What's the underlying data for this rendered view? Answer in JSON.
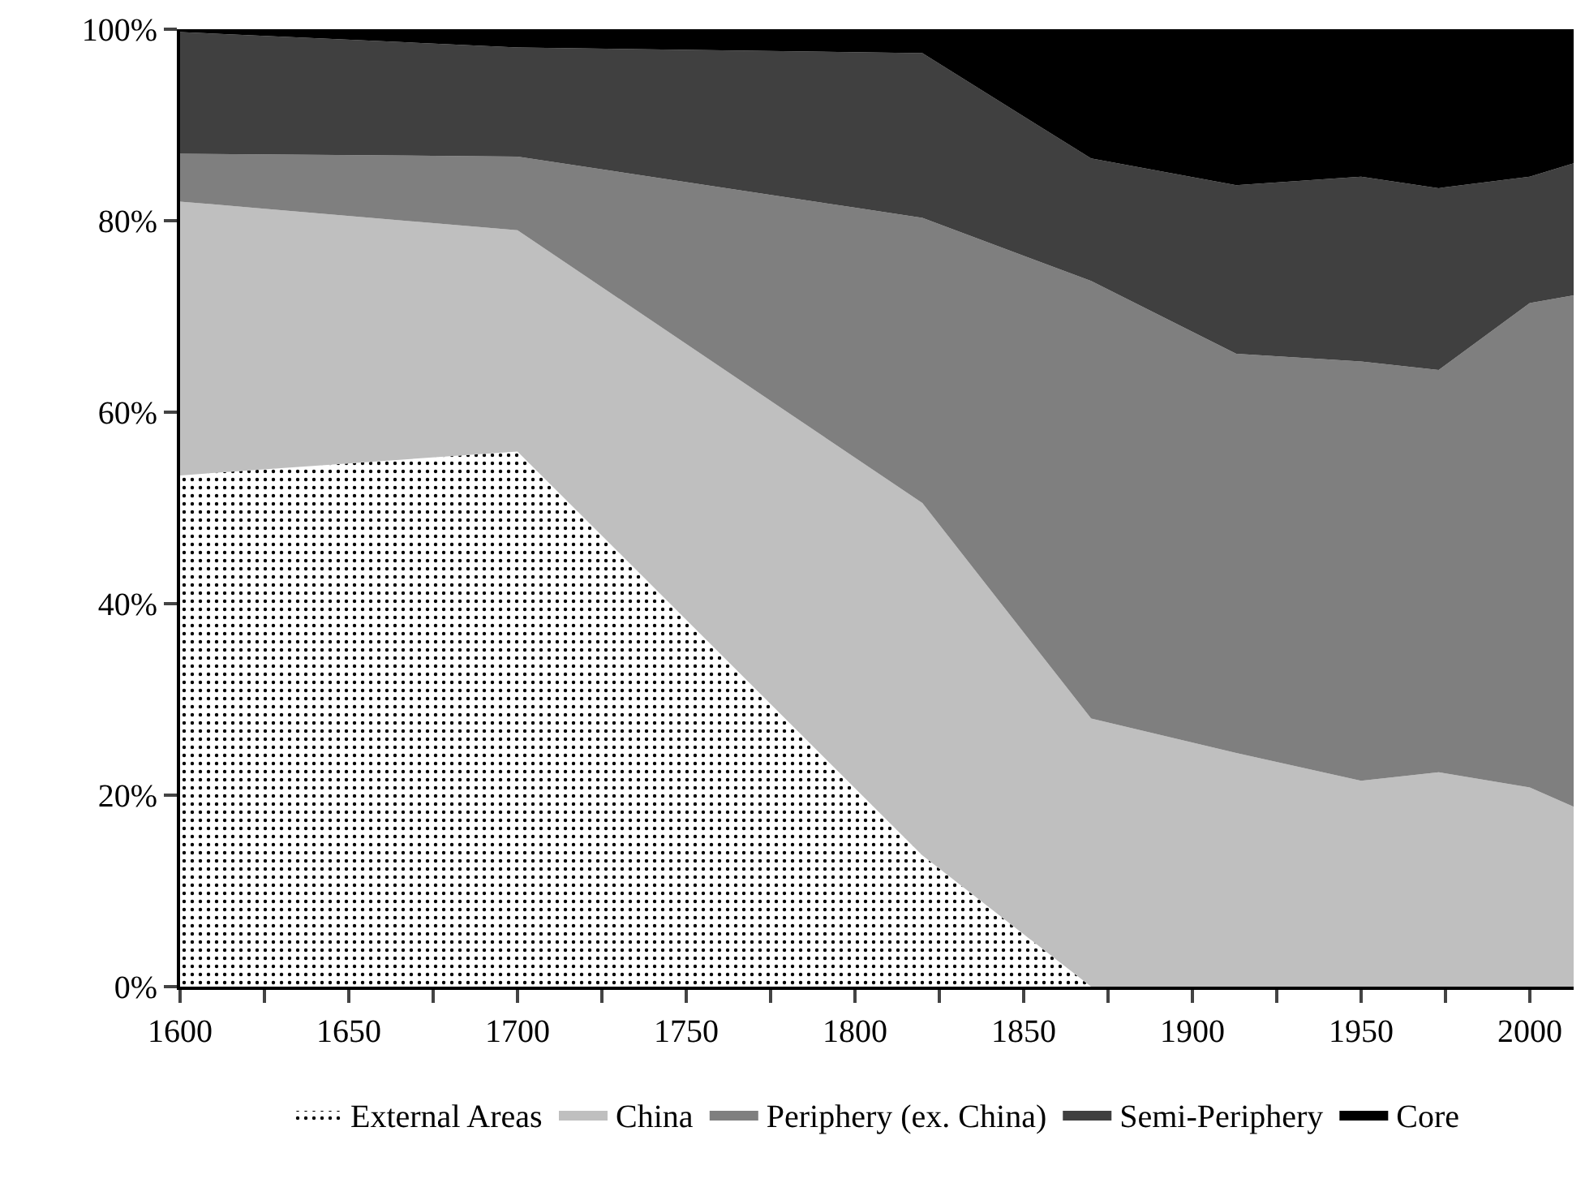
{
  "chart_data": {
    "type": "area",
    "stacked": true,
    "x": [
      1600,
      1700,
      1820,
      1870,
      1913,
      1950,
      1973,
      2000,
      2013
    ],
    "series": [
      {
        "name": "External Areas",
        "color": "#ffffff",
        "values": [
          53.4,
          55.9,
          13.7,
          0,
          0,
          0,
          0,
          0,
          0
        ]
      },
      {
        "name": "China",
        "color": "#bfbfbf",
        "values": [
          28.6,
          23.1,
          36.8,
          28.0,
          24.4,
          21.5,
          22.4,
          20.8,
          18.8
        ]
      },
      {
        "name": "Periphery (ex. China)",
        "color": "#7f7f7f",
        "values": [
          5.0,
          7.7,
          29.8,
          45.7,
          41.7,
          43.8,
          42.0,
          50.6,
          53.4
        ]
      },
      {
        "name": "Semi-Periphery",
        "color": "#404040",
        "values": [
          12.7,
          11.4,
          17.2,
          12.8,
          17.6,
          19.3,
          19.0,
          13.2,
          13.8
        ]
      },
      {
        "name": "Core",
        "color": "#000000",
        "values": [
          0.3,
          1.9,
          2.5,
          13.5,
          16.3,
          15.4,
          16.6,
          15.4,
          14.0
        ]
      }
    ],
    "xlim": [
      1600,
      2013
    ],
    "xticks": [
      1600,
      {
        "value": 1625,
        "label": null
      },
      1650,
      {
        "value": 1675,
        "label": null
      },
      1700,
      {
        "value": 1725,
        "label": null
      },
      1750,
      {
        "value": 1775,
        "label": null
      },
      1800,
      {
        "value": 1825,
        "label": null
      },
      1850,
      {
        "value": 1875,
        "label": null
      },
      1900,
      {
        "value": 1925,
        "label": null
      },
      1950,
      {
        "value": 1975,
        "label": null
      },
      2000
    ],
    "ylim": [
      0,
      100
    ],
    "yticks": [
      {
        "value": 0,
        "label": "0%"
      },
      {
        "value": 20,
        "label": "20%"
      },
      {
        "value": 40,
        "label": "40%"
      },
      {
        "value": 60,
        "label": "60%"
      },
      {
        "value": 80,
        "label": "80%"
      },
      {
        "value": 100,
        "label": "100%"
      }
    ],
    "legend": "bottom"
  }
}
